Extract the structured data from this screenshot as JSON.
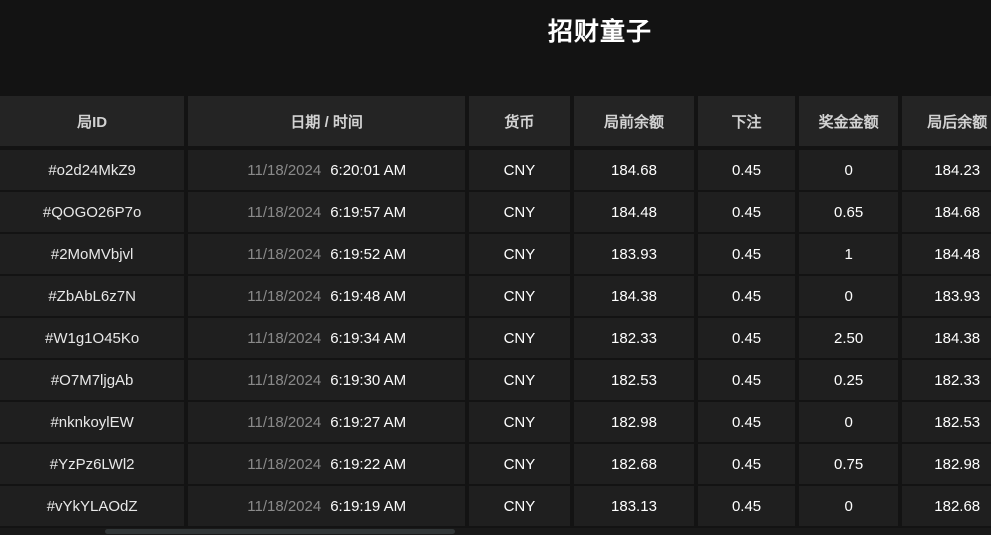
{
  "page": {
    "title": "招财童子"
  },
  "colors": {
    "page_background": "#131313",
    "header_cell_background": "#242424",
    "row_cell_background": "#1f1f1f",
    "date_text": "#8a8a8a",
    "primary_text": "#ffffff"
  },
  "table": {
    "columns": [
      {
        "key": "round_id",
        "label": "局ID"
      },
      {
        "key": "datetime",
        "label": "日期 / 时间"
      },
      {
        "key": "currency",
        "label": "货币"
      },
      {
        "key": "balance_before",
        "label": "局前余额"
      },
      {
        "key": "bet",
        "label": "下注"
      },
      {
        "key": "prize",
        "label": "奖金金额"
      },
      {
        "key": "balance_after",
        "label": "局后余额"
      }
    ],
    "rows": [
      {
        "round_id": "#o2d24MkZ9",
        "date": "11/18/2024",
        "time": "6:20:01 AM",
        "currency": "CNY",
        "balance_before": "184.68",
        "bet": "0.45",
        "prize": "0",
        "balance_after": "184.23"
      },
      {
        "round_id": "#QOGO26P7o",
        "date": "11/18/2024",
        "time": "6:19:57 AM",
        "currency": "CNY",
        "balance_before": "184.48",
        "bet": "0.45",
        "prize": "0.65",
        "balance_after": "184.68"
      },
      {
        "round_id": "#2MoMVbjvl",
        "date": "11/18/2024",
        "time": "6:19:52 AM",
        "currency": "CNY",
        "balance_before": "183.93",
        "bet": "0.45",
        "prize": "1",
        "balance_after": "184.48"
      },
      {
        "round_id": "#ZbAbL6z7N",
        "date": "11/18/2024",
        "time": "6:19:48 AM",
        "currency": "CNY",
        "balance_before": "184.38",
        "bet": "0.45",
        "prize": "0",
        "balance_after": "183.93"
      },
      {
        "round_id": "#W1g1O45Ko",
        "date": "11/18/2024",
        "time": "6:19:34 AM",
        "currency": "CNY",
        "balance_before": "182.33",
        "bet": "0.45",
        "prize": "2.50",
        "balance_after": "184.38"
      },
      {
        "round_id": "#O7M7ljgAb",
        "date": "11/18/2024",
        "time": "6:19:30 AM",
        "currency": "CNY",
        "balance_before": "182.53",
        "bet": "0.45",
        "prize": "0.25",
        "balance_after": "182.33"
      },
      {
        "round_id": "#nknkoylEW",
        "date": "11/18/2024",
        "time": "6:19:27 AM",
        "currency": "CNY",
        "balance_before": "182.98",
        "bet": "0.45",
        "prize": "0",
        "balance_after": "182.53"
      },
      {
        "round_id": "#YzPz6LWl2",
        "date": "11/18/2024",
        "time": "6:19:22 AM",
        "currency": "CNY",
        "balance_before": "182.68",
        "bet": "0.45",
        "prize": "0.75",
        "balance_after": "182.98"
      },
      {
        "round_id": "#vYkYLAOdZ",
        "date": "11/18/2024",
        "time": "6:19:19 AM",
        "currency": "CNY",
        "balance_before": "183.13",
        "bet": "0.45",
        "prize": "0",
        "balance_after": "182.68"
      }
    ]
  }
}
